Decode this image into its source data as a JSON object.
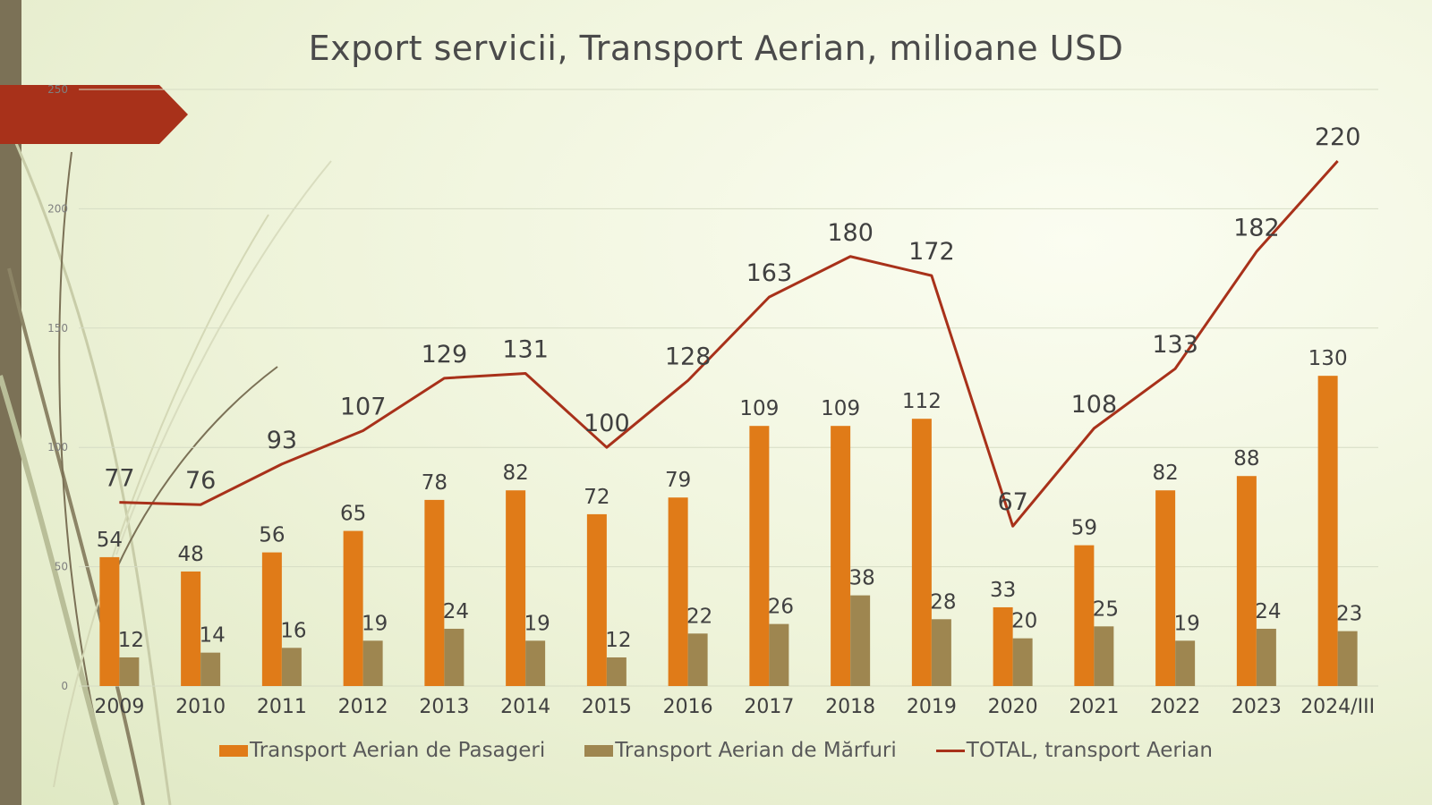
{
  "chart_data": {
    "type": "bar",
    "title": "Export servicii, Transport Aerian, milioane USD",
    "categories": [
      "2009",
      "2010",
      "2011",
      "2012",
      "2013",
      "2014",
      "2015",
      "2016",
      "2017",
      "2018",
      "2019",
      "2020",
      "2021",
      "2022",
      "2023",
      "2024/III"
    ],
    "series": [
      {
        "name": "Transport Aerian de Pasageri",
        "type": "bar",
        "color": "#e07b18",
        "values": [
          54,
          48,
          56,
          65,
          78,
          82,
          72,
          79,
          109,
          109,
          112,
          33,
          59,
          82,
          88,
          130
        ]
      },
      {
        "name": "Transport Aerian de Mărfuri",
        "type": "bar",
        "color": "#9e8650",
        "values": [
          12,
          14,
          16,
          19,
          24,
          19,
          12,
          22,
          26,
          38,
          28,
          20,
          25,
          19,
          24,
          23
        ]
      },
      {
        "name": "TOTAL, transport Aerian",
        "type": "line",
        "color": "#a8311a",
        "values": [
          77,
          76,
          93,
          107,
          129,
          131,
          100,
          128,
          163,
          180,
          172,
          67,
          108,
          133,
          182,
          220
        ]
      }
    ],
    "ylim": [
      0,
      250
    ],
    "yticks": [
      0,
      50,
      100,
      150,
      200,
      250
    ],
    "grid": true,
    "legend_position": "bottom"
  },
  "theme": {
    "accent": "#a8311a",
    "side_bar": "#7b7156"
  }
}
